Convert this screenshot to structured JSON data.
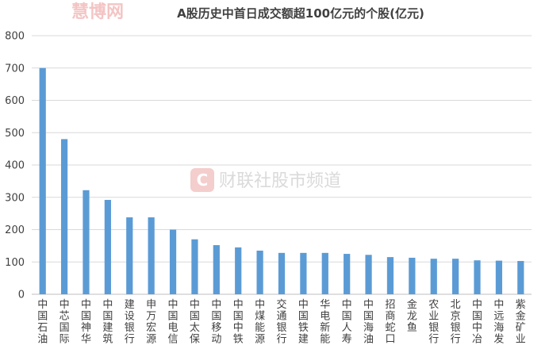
{
  "watermarks": {
    "top_left": "慧博网",
    "center": "财联社股市频道",
    "center_logo_letter": "C"
  },
  "colors": {
    "bar": "#5B9BD5",
    "grid": "#D9D9D9",
    "text": "#404040"
  },
  "chart_data": {
    "type": "bar",
    "title": "A股历史中首日成交额超100亿元的个股(亿元)",
    "xlabel": "",
    "ylabel": "",
    "ylim": [
      0,
      800
    ],
    "yticks": [
      0,
      100,
      200,
      300,
      400,
      500,
      600,
      700,
      800
    ],
    "grid": true,
    "legend": "none",
    "categories": [
      "中国石油",
      "中芯国际",
      "中国神华",
      "中国建筑",
      "建设银行",
      "申万宏源",
      "中国电信",
      "中国太保",
      "中国移动",
      "中国中铁",
      "中煤能源",
      "交通银行",
      "中国铁建",
      "华电新能",
      "中国人寿",
      "中国海油",
      "招商蛇口",
      "金龙鱼",
      "农业银行",
      "北京银行",
      "中国中冶",
      "中远海发",
      "紫金矿业"
    ],
    "values": [
      700,
      480,
      322,
      292,
      238,
      238,
      200,
      170,
      152,
      145,
      135,
      128,
      128,
      128,
      125,
      122,
      115,
      113,
      110,
      110,
      105,
      104,
      103
    ]
  }
}
